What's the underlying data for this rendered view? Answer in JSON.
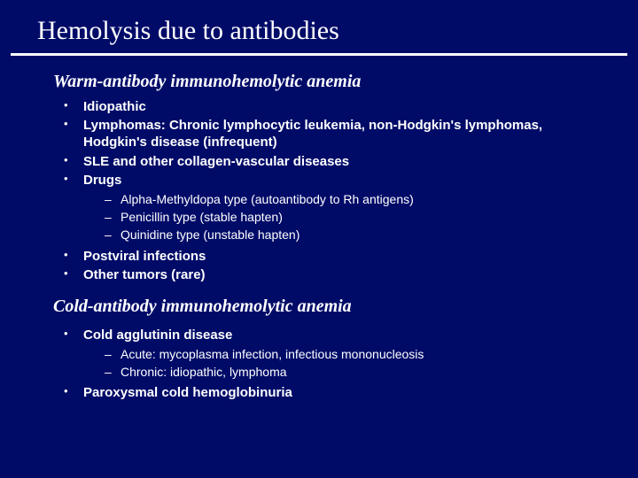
{
  "background_color": "#000b68",
  "text_color": "#ffffff",
  "title": "Hemolysis due to antibodies",
  "title_fontsize": 30,
  "rule_color": "#ffffff",
  "sections": [
    {
      "heading": "Warm-antibody immunohemolytic anemia",
      "items": [
        {
          "text": "Idiopathic"
        },
        {
          "text": "Lymphomas: Chronic lymphocytic leukemia, non-Hodgkin's lymphomas, Hodgkin's disease (infrequent)"
        },
        {
          "text": "SLE and other collagen-vascular diseases"
        },
        {
          "text": "Drugs",
          "sub": [
            "Alpha-Methyldopa type (autoantibody to Rh antigens)",
            "Penicillin type (stable hapten)",
            "Quinidine type (unstable hapten)"
          ]
        },
        {
          "text": "Postviral infections"
        },
        {
          "text": "Other tumors (rare)"
        }
      ]
    },
    {
      "heading": "Cold-antibody immunohemolytic anemia",
      "items": [
        {
          "text": "Cold agglutinin disease",
          "sub": [
            "Acute: mycoplasma infection, infectious mononucleosis",
            "Chronic: idiopathic, lymphoma"
          ]
        },
        {
          "text": "Paroxysmal cold hemoglobinuria"
        }
      ]
    }
  ]
}
